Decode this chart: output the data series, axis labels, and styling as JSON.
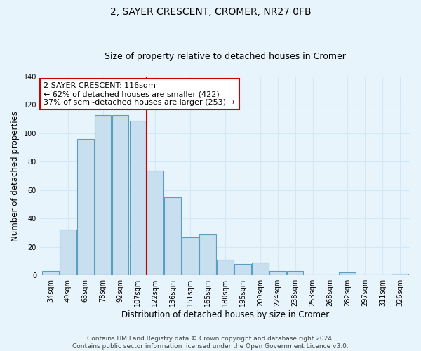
{
  "title": "2, SAYER CRESCENT, CROMER, NR27 0FB",
  "subtitle": "Size of property relative to detached houses in Cromer",
  "xlabel": "Distribution of detached houses by size in Cromer",
  "ylabel": "Number of detached properties",
  "bar_labels": [
    "34sqm",
    "49sqm",
    "63sqm",
    "78sqm",
    "92sqm",
    "107sqm",
    "122sqm",
    "136sqm",
    "151sqm",
    "165sqm",
    "180sqm",
    "195sqm",
    "209sqm",
    "224sqm",
    "238sqm",
    "253sqm",
    "268sqm",
    "282sqm",
    "297sqm",
    "311sqm",
    "326sqm"
  ],
  "bar_values": [
    3,
    32,
    96,
    113,
    113,
    109,
    74,
    55,
    27,
    29,
    11,
    8,
    9,
    3,
    3,
    0,
    0,
    2,
    0,
    0,
    1
  ],
  "bar_color": "#c8dff0",
  "bar_edge_color": "#5a9fc0",
  "vline_x_index": 6,
  "vline_color": "#cc0000",
  "annotation_text": "2 SAYER CRESCENT: 116sqm\n← 62% of detached houses are smaller (422)\n37% of semi-detached houses are larger (253) →",
  "annotation_box_color": "#ffffff",
  "annotation_box_edge_color": "#cc0000",
  "ylim": [
    0,
    140
  ],
  "yticks": [
    0,
    20,
    40,
    60,
    80,
    100,
    120,
    140
  ],
  "footer_line1": "Contains HM Land Registry data © Crown copyright and database right 2024.",
  "footer_line2": "Contains public sector information licensed under the Open Government Licence v3.0.",
  "bg_color": "#e8f4fc",
  "grid_color": "#d0e8f8",
  "title_fontsize": 10,
  "subtitle_fontsize": 9,
  "axis_label_fontsize": 8.5,
  "tick_fontsize": 7,
  "annotation_fontsize": 8,
  "footer_fontsize": 6.5
}
